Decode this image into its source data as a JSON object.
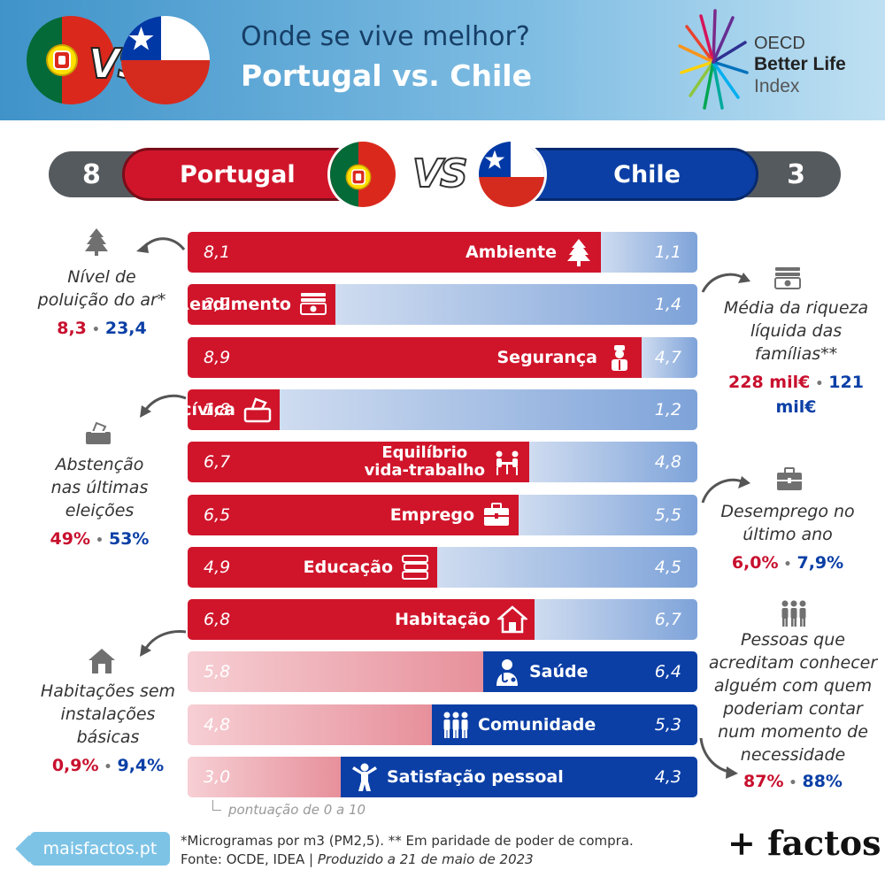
{
  "header": {
    "title_line1": "Onde se vive melhor?",
    "title_line2": "Portugal vs. Chile",
    "vs": "VS",
    "oecd_line1": "OECD",
    "oecd_line2": "Better Life",
    "oecd_line3": "Index"
  },
  "scoreboard": {
    "left_score": "8",
    "left_country": "Portugal",
    "vs": "VS",
    "right_country": "Chile",
    "right_score": "3"
  },
  "colors": {
    "portugal": "#d0152b",
    "chile": "#0b3fa6",
    "header_gradient_start": "#3f93c9",
    "header_gradient_end": "#bfe0f2"
  },
  "chart_data": {
    "type": "bar",
    "scale_note": "pontuação de 0 a 10",
    "ylim": [
      0,
      10
    ],
    "series": [
      {
        "name": "Portugal"
      },
      {
        "name": "Chile"
      }
    ],
    "rows": [
      {
        "category": "Ambiente",
        "portugal": 8.1,
        "chile": 1.1,
        "portugal_label": "8,1",
        "chile_label": "1,1",
        "winner": "portugal",
        "icon": "tree-icon"
      },
      {
        "category": "Rendimento",
        "portugal": 2.9,
        "chile": 1.4,
        "portugal_label": "2,9",
        "chile_label": "1,4",
        "winner": "portugal",
        "icon": "money-icon"
      },
      {
        "category": "Segurança",
        "portugal": 8.9,
        "chile": 4.7,
        "portugal_label": "8,9",
        "chile_label": "4,7",
        "winner": "portugal",
        "icon": "police-icon"
      },
      {
        "category": "Participação cívica",
        "portugal": 1.8,
        "chile": 1.2,
        "portugal_label": "1,8",
        "chile_label": "1,2",
        "winner": "portugal",
        "icon": "ballot-icon"
      },
      {
        "category_line1": "Equilíbrio",
        "category_line2": "vida-trabalho",
        "portugal": 6.7,
        "chile": 4.8,
        "portugal_label": "6,7",
        "chile_label": "4,8",
        "winner": "portugal",
        "icon": "meeting-icon"
      },
      {
        "category": "Emprego",
        "portugal": 6.5,
        "chile": 5.5,
        "portugal_label": "6,5",
        "chile_label": "5,5",
        "winner": "portugal",
        "icon": "briefcase-icon"
      },
      {
        "category": "Educação",
        "portugal": 4.9,
        "chile": 4.5,
        "portugal_label": "4,9",
        "chile_label": "4,5",
        "winner": "portugal",
        "icon": "books-icon"
      },
      {
        "category": "Habitação",
        "portugal": 6.8,
        "chile": 6.7,
        "portugal_label": "6,8",
        "chile_label": "6,7",
        "winner": "portugal",
        "icon": "house-icon"
      },
      {
        "category": "Saúde",
        "portugal": 5.8,
        "chile": 6.4,
        "portugal_label": "5,8",
        "chile_label": "6,4",
        "winner": "chile",
        "icon": "doctor-icon"
      },
      {
        "category": "Comunidade",
        "portugal": 4.8,
        "chile": 5.3,
        "portugal_label": "4,8",
        "chile_label": "5,3",
        "winner": "chile",
        "icon": "people-icon"
      },
      {
        "category": "Satisfação pessoal",
        "portugal": 3.0,
        "chile": 4.3,
        "portugal_label": "3,0",
        "chile_label": "4,3",
        "winner": "chile",
        "icon": "happy-person-icon"
      }
    ]
  },
  "notes": {
    "air": {
      "line1": "Nível de",
      "line2": "poluição do ar*",
      "pt": "8,3",
      "cl": "23,4"
    },
    "wealth": {
      "line1": "Média da riqueza",
      "line2": "líquida das",
      "line3": "famílias**",
      "pt": "228 mil€",
      "cl": "121 mil€"
    },
    "abstention": {
      "line1": "Abstenção",
      "line2": "nas últimas",
      "line3": "eleições",
      "pt": "49%",
      "cl": "53%"
    },
    "unemployment": {
      "line1": "Desemprego no",
      "line2": "último ano",
      "pt": "6,0%",
      "cl": "7,9%"
    },
    "housing": {
      "line1": "Habitações sem",
      "line2": "instalações",
      "line3": "básicas",
      "pt": "0,9%",
      "cl": "9,4%"
    },
    "support": {
      "line1": "Pessoas que",
      "line2": "acreditam conhecer",
      "line3": "alguém com quem",
      "line4": "poderiam contar",
      "line5": "num momento de",
      "line6": "necessidade",
      "pt": "87%",
      "cl": "88%"
    },
    "separator": "•"
  },
  "footer": {
    "site": "maisfactos.pt",
    "footnote1": "*Microgramas por m3 (PM2,5). ** Em paridade de poder de compra.",
    "source": "Fonte: OCDE, IDEA | ",
    "produced": "Produzido a 21 de maio de 2023",
    "brand": "+ factos"
  }
}
